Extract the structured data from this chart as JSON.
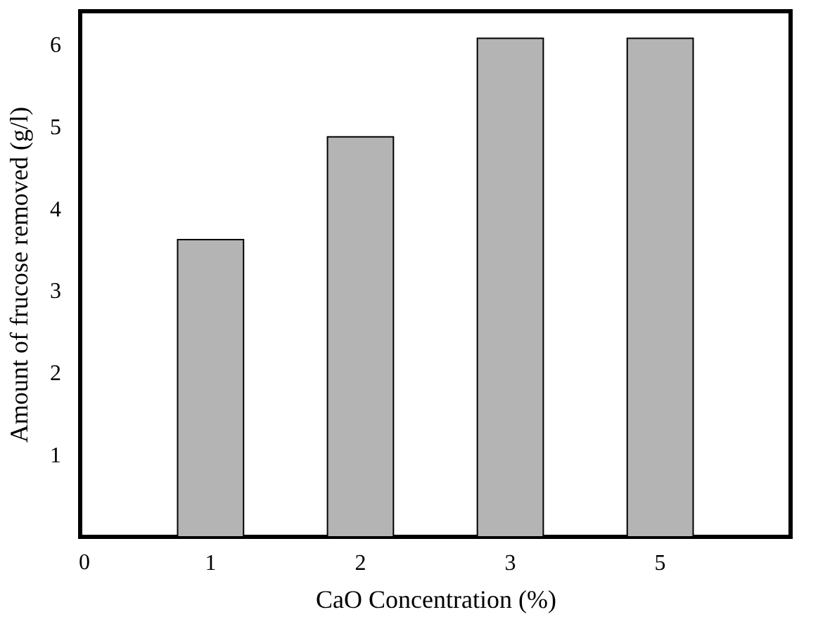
{
  "chart_data": {
    "type": "bar",
    "xlabel": "CaO Concentration (%)",
    "ylabel": "Amount of  frucose removed (g/l)",
    "categories": [
      "1",
      "2",
      "3",
      "5"
    ],
    "values": [
      3.62,
      4.87,
      6.07,
      6.07
    ],
    "color": "#b4b4b4",
    "ylim": [
      0,
      6.4
    ],
    "yticks": [
      1,
      2,
      3,
      4,
      5,
      6
    ],
    "annotations": [
      "0"
    ],
    "grid": false
  }
}
